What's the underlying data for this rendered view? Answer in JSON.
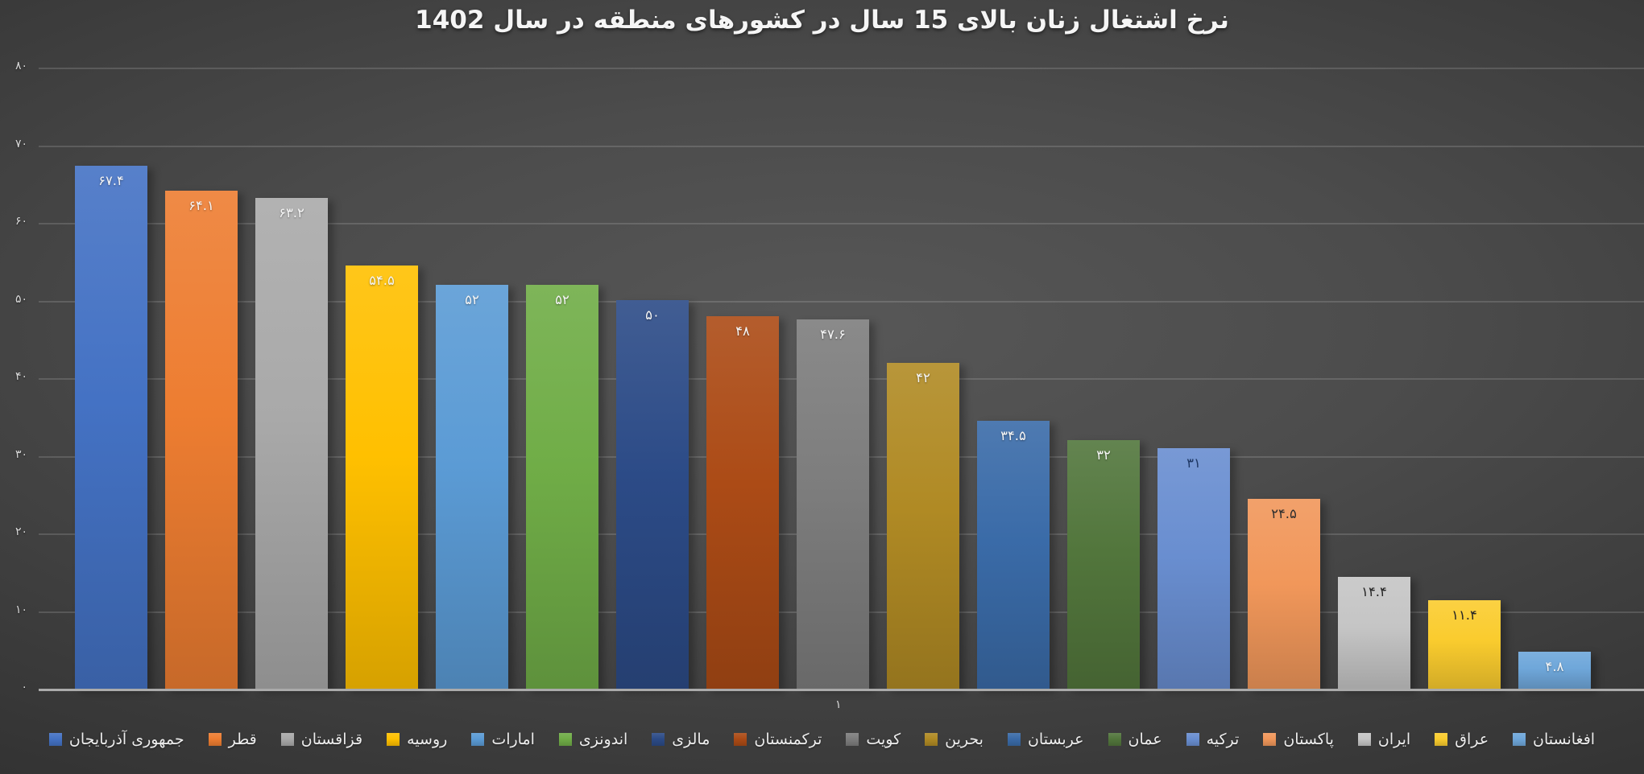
{
  "chart_data": {
    "type": "bar",
    "title": "نرخ اشتغال زنان بالای 15 سال در کشورهای منطقه در سال 1402",
    "xlabel": "",
    "ylabel": "",
    "ylim": [
      0,
      80
    ],
    "grid": true,
    "legend_position": "bottom",
    "x_category_labels": [
      "۱"
    ],
    "categories": [
      "جمهوری آذربایجان",
      "قطر",
      "قزاقستان",
      "روسیه",
      "امارات",
      "اندونزی",
      "مالزی",
      "ترکمنستان",
      "کویت",
      "بحرین",
      "عربستان",
      "عمان",
      "ترکیه",
      "پاکستان",
      "ایران",
      "عراق",
      "افغانستان"
    ],
    "values": [
      67.4,
      64.1,
      63.2,
      54.5,
      52,
      52,
      50,
      48,
      47.6,
      42,
      34.5,
      32,
      31,
      24.5,
      14.4,
      11.4,
      4.8
    ],
    "value_labels_fa": [
      "۶۷.۴",
      "۶۴.۱",
      "۶۳.۲",
      "۵۴.۵",
      "۵۲",
      "۵۲",
      "۵۰",
      "۴۸",
      "۴۷.۶",
      "۴۲",
      "۳۴.۵",
      "۳۲",
      "۳۱",
      "۲۴.۵",
      "۱۴.۴",
      "۱۱.۴",
      "۴.۸"
    ],
    "colors": [
      "#4472C4",
      "#ED7D31",
      "#A9A9A9",
      "#FFC000",
      "#5B9BD5",
      "#70AD47",
      "#2C4B87",
      "#AC4B16",
      "#7D7D7D",
      "#B08A24",
      "#3A6BA8",
      "#52763C",
      "#698ED0",
      "#F1975A",
      "#C5C5C5",
      "#FACC2E",
      "#6FA7DA"
    ],
    "value_label_colors": [
      "#F5F5F5",
      "#F5F5F5",
      "#F5F5F5",
      "#F5F5F5",
      "#F5F5F5",
      "#F5F5F5",
      "#F5F5F5",
      "#F5F5F5",
      "#F5F5F5",
      "#F5F5F5",
      "#F5F5F5",
      "#F5F5F5",
      "#1F3864",
      "#2E2E2E",
      "#262626",
      "#262626",
      "#F5F5F5"
    ]
  },
  "axis": {
    "y_ticks": [
      {
        "value": 80,
        "label": "۸۰"
      },
      {
        "value": 70,
        "label": "۷۰"
      },
      {
        "value": 60,
        "label": "۶۰"
      },
      {
        "value": 50,
        "label": "۵۰"
      },
      {
        "value": 40,
        "label": "۴۰"
      },
      {
        "value": 30,
        "label": "۳۰"
      },
      {
        "value": 20,
        "label": "۲۰"
      },
      {
        "value": 10,
        "label": "۱۰"
      },
      {
        "value": 0,
        "label": "۰"
      }
    ],
    "x_category_label": "۱"
  },
  "theme": {
    "title_color": "#F5F5F5",
    "tick_label_color": "#D9D9D9",
    "gridline_color": "rgba(255,255,255,0.14)",
    "axis_line_color": "#ABABAB",
    "legend_text_color": "#EDEDED",
    "background_center": "#575757",
    "background_outer": "#262626"
  }
}
